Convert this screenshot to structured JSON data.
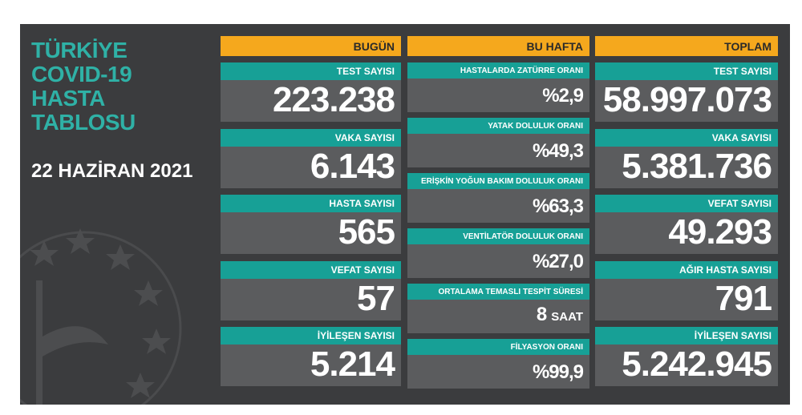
{
  "title": [
    "TÜRKİYE",
    "COVID-19",
    "HASTA",
    "TABLOSU"
  ],
  "date": "22 HAZİRAN 2021",
  "columns": [
    {
      "header": "BUGÜN",
      "items": [
        {
          "label": "TEST SAYISI",
          "value": "223.238"
        },
        {
          "label": "VAKA SAYISI",
          "value": "6.143"
        },
        {
          "label": "HASTA SAYISI",
          "value": "565"
        },
        {
          "label": "VEFAT SAYISI",
          "value": "57"
        },
        {
          "label": "İYİLEŞEN SAYISI",
          "value": "5.214"
        }
      ]
    },
    {
      "header": "BU HAFTA",
      "items": [
        {
          "label": "HASTALARDA ZATÜRRE ORANI",
          "value": "%2,9"
        },
        {
          "label": "YATAK DOLULUK ORANI",
          "value": "%49,3"
        },
        {
          "label": "ERİŞKİN YOĞUN BAKIM DOLULUK ORANI",
          "value": "%63,3"
        },
        {
          "label": "VENTİLATÖR DOLULUK ORANI",
          "value": "%27,0"
        },
        {
          "label": "ORTALAMA TEMASLI TESPİT SÜRESİ",
          "value": "8",
          "unit": "SAAT"
        },
        {
          "label": "FİLYASYON ORANI",
          "value": "%99,9"
        }
      ]
    },
    {
      "header": "TOPLAM",
      "items": [
        {
          "label": "TEST SAYISI",
          "value": "58.997.073"
        },
        {
          "label": "VAKA SAYISI",
          "value": "5.381.736"
        },
        {
          "label": "VEFAT SAYISI",
          "value": "49.293"
        },
        {
          "label": "AĞIR HASTA SAYISI",
          "value": "791"
        },
        {
          "label": "İYİLEŞEN SAYISI",
          "value": "5.242.945"
        }
      ]
    }
  ]
}
